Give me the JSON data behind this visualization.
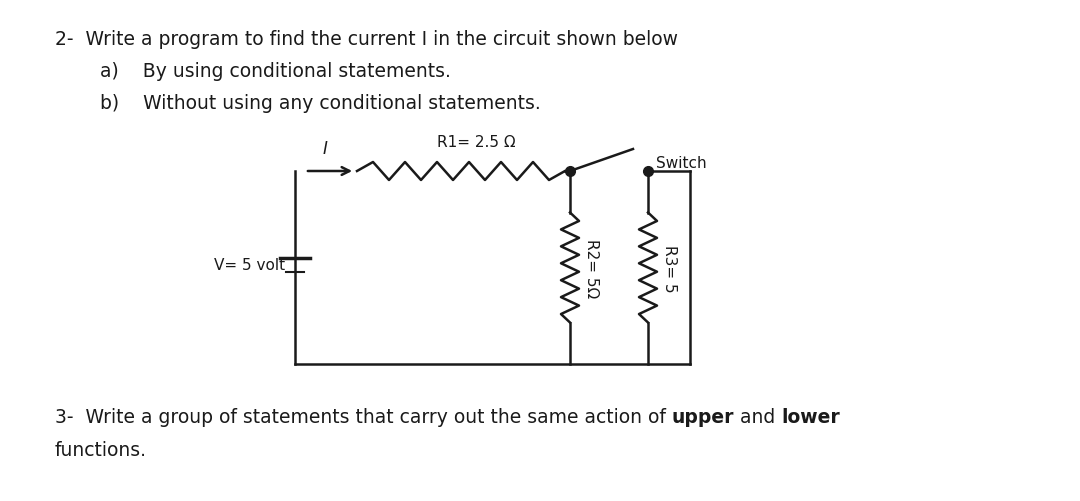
{
  "bg_color": "#ffffff",
  "text_color": "#1a1a1a",
  "title_line": "2-  Write a program to find the current I in the circuit shown below",
  "sub_a": "a)    By using conditional statements.",
  "sub_b": "b)    Without using any conditional statements.",
  "q3_prefix": "3-  Write a group of statements that carry out the same action of ",
  "q3_bold1": "upper",
  "q3_mid": " and ",
  "q3_bold2": "lower",
  "q3_line2": "functions.",
  "circuit_color": "#1a1a1a",
  "R1_label": "R1= 2.5 Ω",
  "R2_label": "R2= 5Ω",
  "R3_label": "R3= 5",
  "V_label": "V= 5 volt",
  "I_label": "I",
  "Switch_label": "Switch",
  "font_size_main": 13.5,
  "font_size_circuit": 11.0
}
